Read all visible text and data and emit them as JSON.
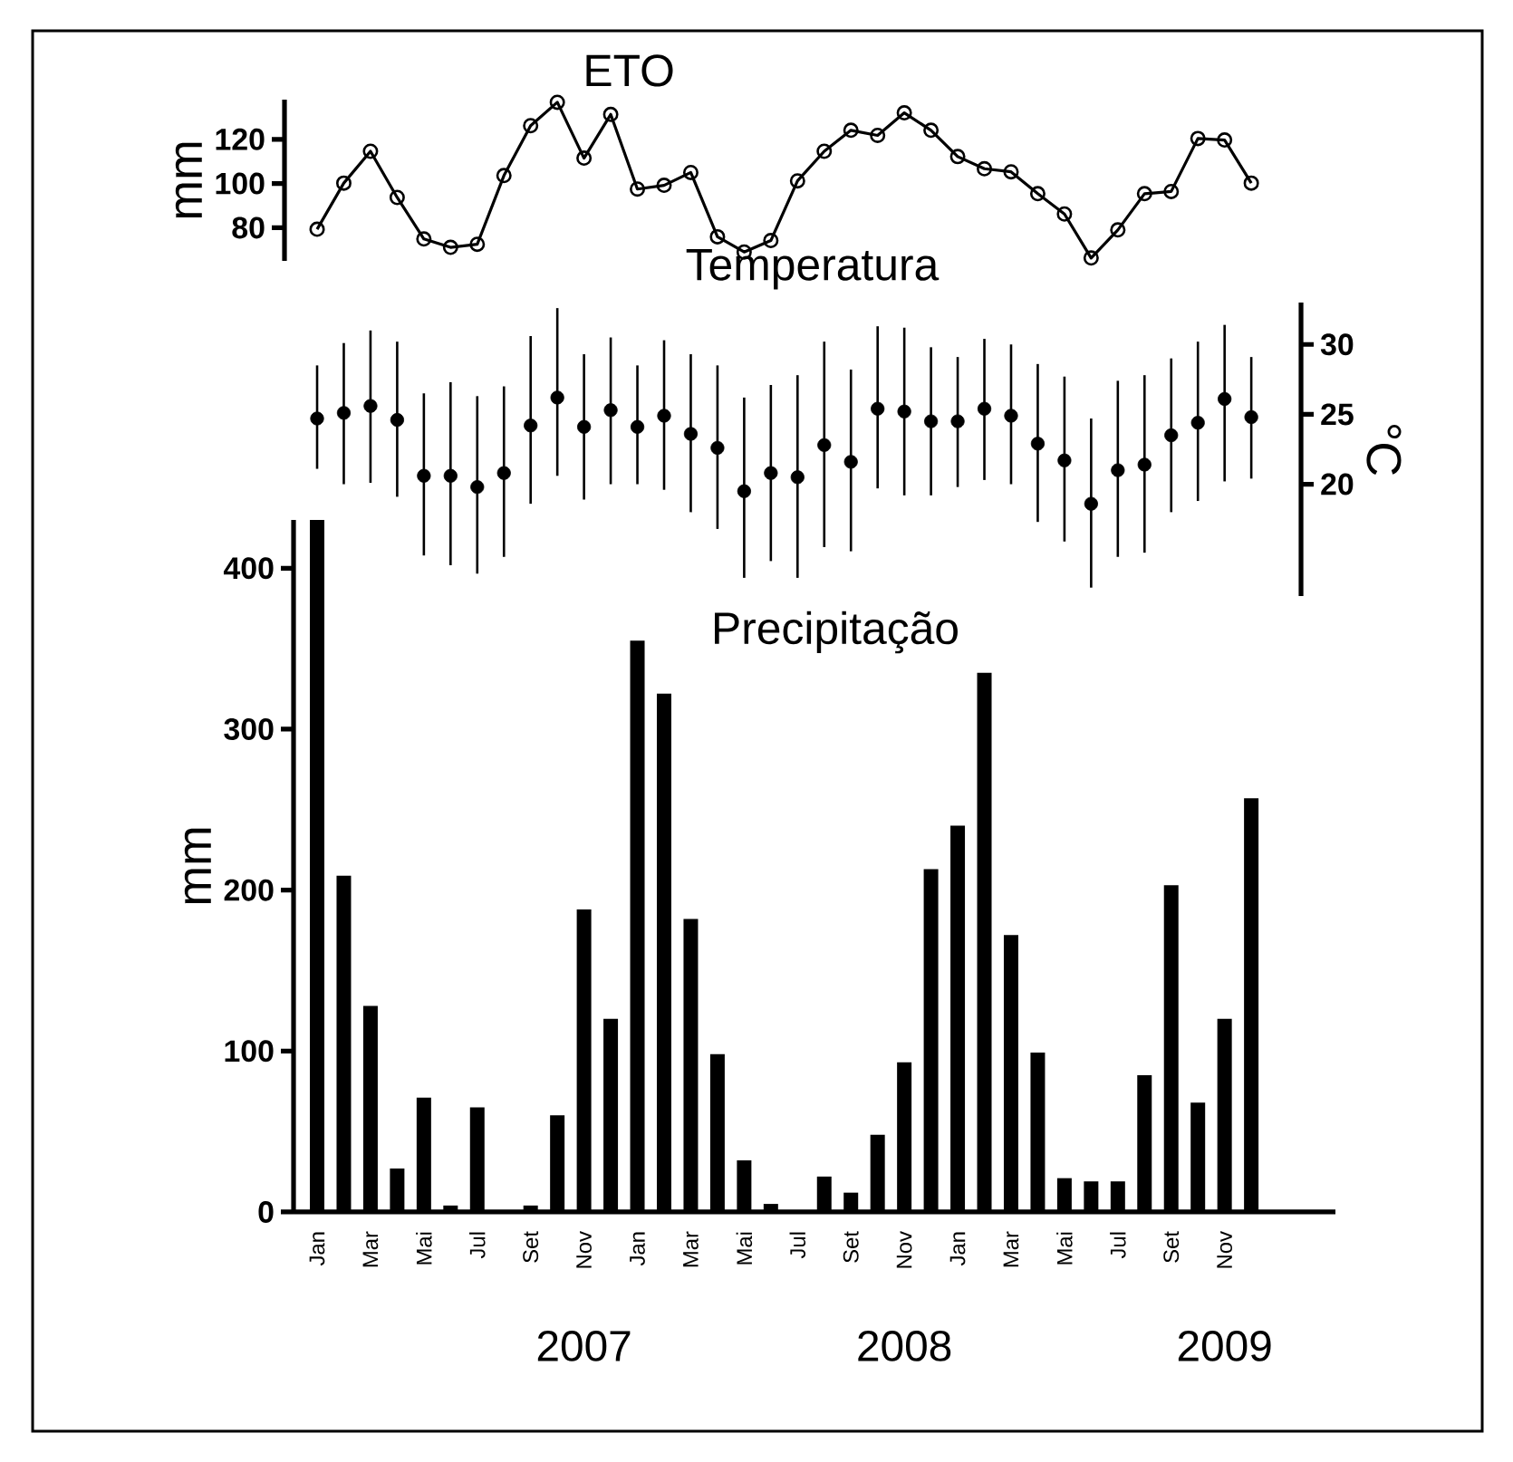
{
  "chart_data": [
    {
      "type": "line",
      "title": "ETO",
      "ylabel": "mm",
      "marker": "circle",
      "color": "#000000",
      "tick_labels": "y",
      "categories": [
        null,
        null,
        null,
        null,
        null,
        null,
        null,
        null,
        null,
        null,
        null,
        null,
        null,
        null,
        null,
        null,
        null,
        null,
        null,
        null,
        null,
        null,
        null,
        null,
        null,
        null,
        null,
        null,
        null,
        null,
        null,
        null,
        null,
        null,
        null,
        null
      ],
      "values": [
        79.3,
        100.2,
        114.6,
        93.7,
        74.9,
        71.1,
        72.5,
        103.6,
        126.2,
        136.8,
        111.5,
        131.3,
        97.5,
        99.2,
        105.0,
        75.9,
        69.0,
        74.2,
        101.2,
        114.6,
        124.1,
        121.8,
        132.0,
        124.1,
        112.2,
        106.7,
        105.3,
        95.4,
        86.2,
        66.3,
        79.0,
        95.4,
        96.4,
        120.4,
        119.7,
        100.2
      ],
      "ylim": [
        65,
        138
      ],
      "yticks": [
        80,
        100,
        120
      ]
    },
    {
      "type": "scatter",
      "title": "Temperatura",
      "ylabel": "°C",
      "marker": "circle",
      "color": "#000000",
      "tick_labels": "y",
      "categories": [
        null,
        null,
        null,
        null,
        null,
        null,
        null,
        null,
        null,
        null,
        null,
        null,
        null,
        null,
        null,
        null,
        null,
        null,
        null,
        null,
        null,
        null,
        null,
        null,
        null,
        null,
        null,
        null,
        null,
        null,
        null,
        null,
        null,
        null,
        null,
        null
      ],
      "values": [
        24.7,
        25.1,
        25.6,
        24.6,
        20.6,
        20.6,
        19.8,
        20.8,
        24.2,
        26.2,
        24.1,
        25.3,
        24.1,
        24.9,
        23.6,
        22.6,
        19.5,
        20.8,
        20.5,
        22.8,
        21.6,
        25.4,
        25.2,
        24.5,
        24.5,
        25.4,
        24.9,
        22.9,
        21.7,
        18.6,
        21.0,
        21.4,
        23.5,
        24.4,
        26.1,
        24.8
      ],
      "errors": [
        [
          21.1,
          28.5
        ],
        [
          20.0,
          30.1
        ],
        [
          20.1,
          31.0
        ],
        [
          19.1,
          30.2
        ],
        [
          14.9,
          26.5
        ],
        [
          14.2,
          27.3
        ],
        [
          13.6,
          26.3
        ],
        [
          14.8,
          27.0
        ],
        [
          18.6,
          30.6
        ],
        [
          20.6,
          32.6
        ],
        [
          18.9,
          29.3
        ],
        [
          20.0,
          30.5
        ],
        [
          20.0,
          28.5
        ],
        [
          19.6,
          30.3
        ],
        [
          18.0,
          29.3
        ],
        [
          16.8,
          28.5
        ],
        [
          13.3,
          26.2
        ],
        [
          14.5,
          27.1
        ],
        [
          13.3,
          27.8
        ],
        [
          15.5,
          30.2
        ],
        [
          15.2,
          28.2
        ],
        [
          19.7,
          31.3
        ],
        [
          19.2,
          31.2
        ],
        [
          19.2,
          29.8
        ],
        [
          19.8,
          29.1
        ],
        [
          20.3,
          30.4
        ],
        [
          20.0,
          30.0
        ],
        [
          17.3,
          28.6
        ],
        [
          15.9,
          27.7
        ],
        [
          12.6,
          24.7
        ],
        [
          14.8,
          27.4
        ],
        [
          15.1,
          27.8
        ],
        [
          18.0,
          29.0
        ],
        [
          18.8,
          30.2
        ],
        [
          20.2,
          31.4
        ],
        [
          20.4,
          29.1
        ]
      ],
      "ylim": [
        12,
        33
      ],
      "yticks": [
        20,
        25,
        30
      ]
    },
    {
      "type": "bar",
      "title": "Precipitação",
      "ylabel": "mm",
      "color": "#000000",
      "categories": [
        "Jan",
        null,
        "Mar",
        null,
        "Mai",
        null,
        "Jul",
        null,
        "Set",
        null,
        "Nov",
        null,
        "Jan",
        null,
        "Mar",
        null,
        "Mai",
        null,
        "Jul",
        null,
        "Set",
        null,
        "Nov",
        null,
        "Jan",
        null,
        "Mar",
        null,
        "Mai",
        null,
        "Jul",
        null,
        "Set",
        null,
        "Nov",
        null
      ],
      "values": [
        430,
        209,
        128,
        27,
        71,
        4,
        65,
        0,
        4,
        60,
        188,
        120,
        355,
        322,
        182,
        98,
        32,
        5,
        0,
        22,
        12,
        48,
        93,
        213,
        240,
        335,
        172,
        99,
        21,
        19,
        19,
        85,
        203,
        68,
        120,
        257
      ],
      "ylim": [
        0,
        430
      ],
      "yticks": [
        0,
        100,
        200,
        300,
        400
      ],
      "annotations": [
        "2007",
        "2008",
        "2009"
      ]
    }
  ]
}
